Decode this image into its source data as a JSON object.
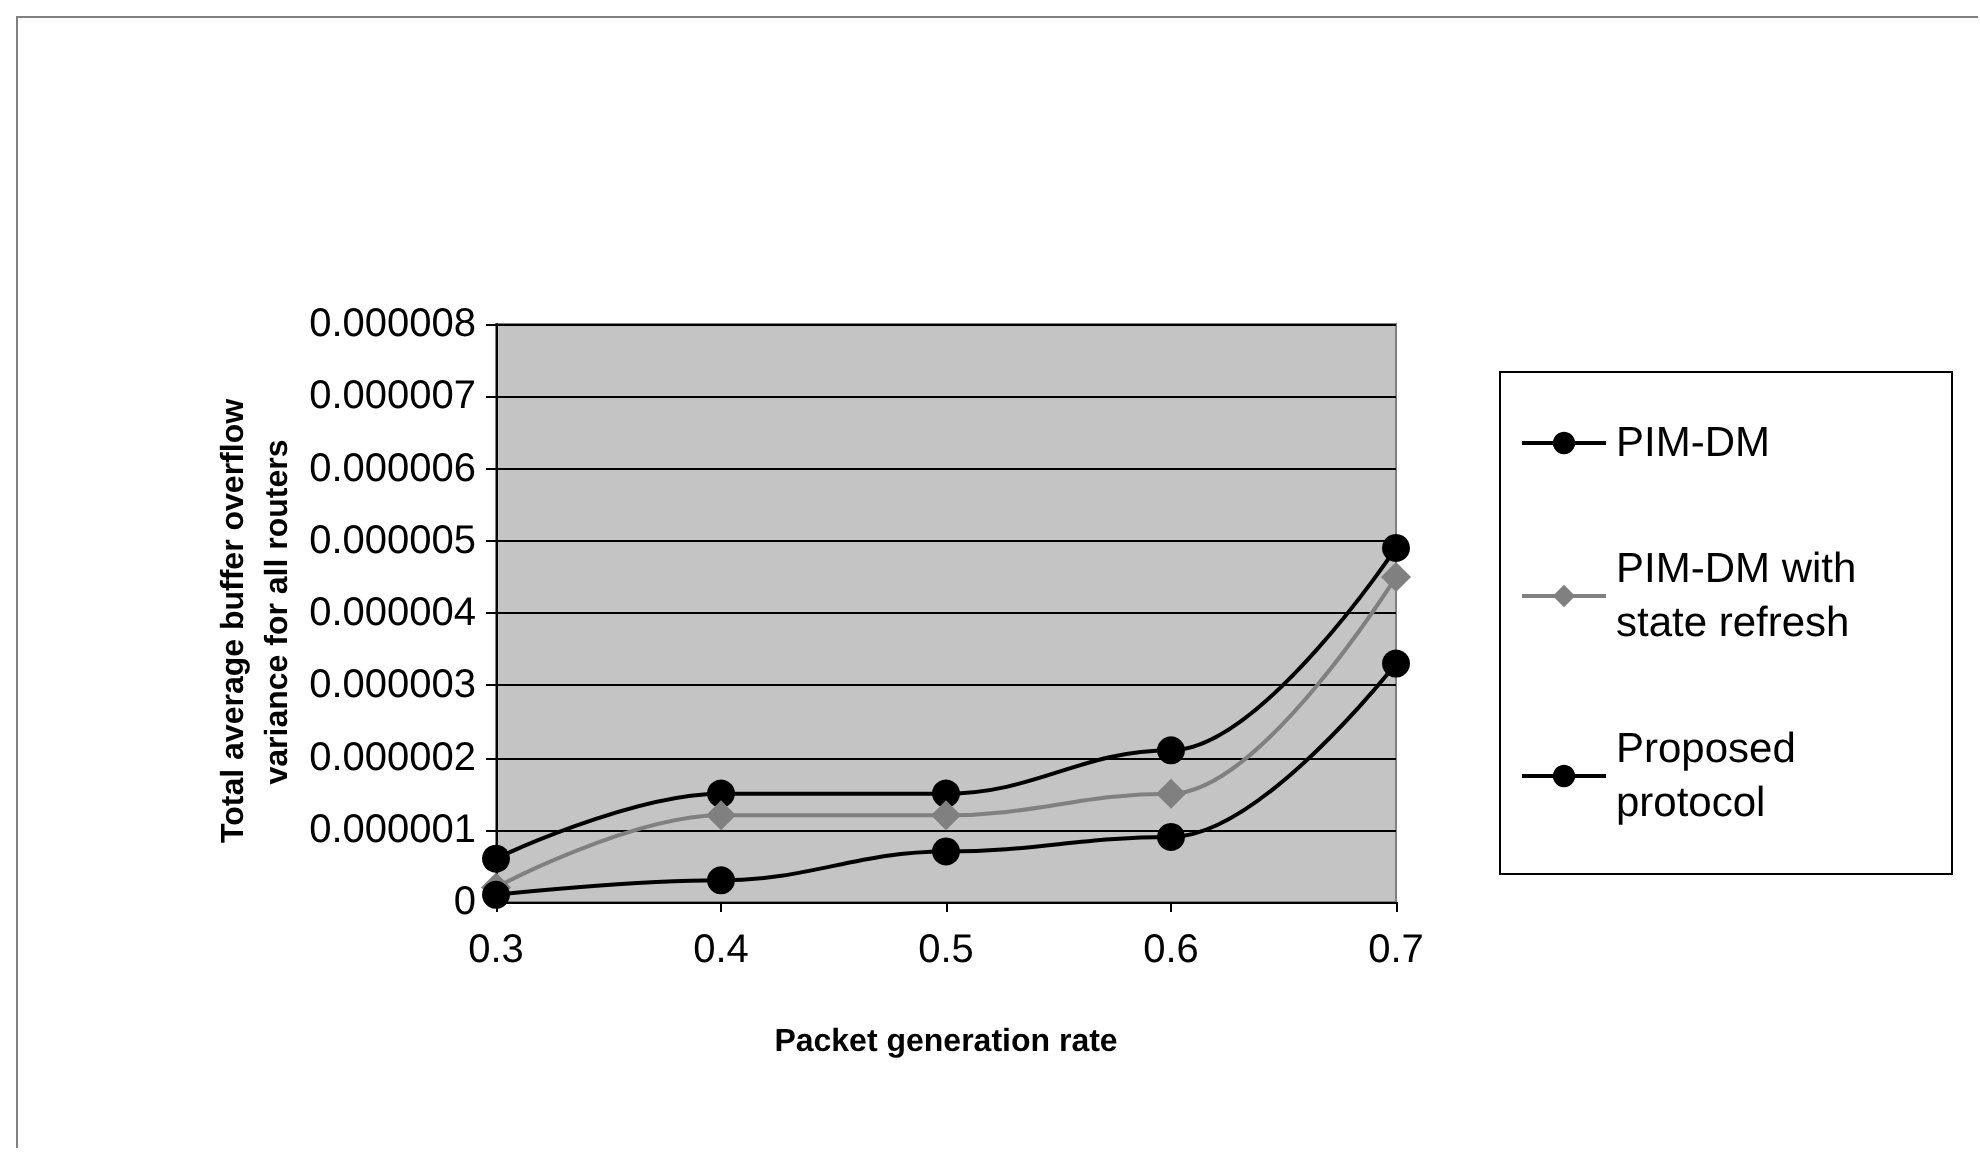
{
  "chart_data": {
    "type": "line",
    "xlabel": "Packet generation rate",
    "ylabel": "Total average buffer overflow  variance for all routers",
    "x": [
      0.3,
      0.4,
      0.5,
      0.6,
      0.7
    ],
    "series": [
      {
        "name": "PIM-DM",
        "color": "#000000",
        "marker": "circle",
        "values": [
          6e-07,
          1.5e-06,
          1.5e-06,
          2.1e-06,
          4.9e-06
        ]
      },
      {
        "name": "PIM-DM with state refresh",
        "color": "#808080",
        "marker": "diamond",
        "values": [
          2e-07,
          1.2e-06,
          1.2e-06,
          1.5e-06,
          4.5e-06
        ]
      },
      {
        "name": "Proposed protocol",
        "color": "#000000",
        "marker": "circle",
        "values": [
          1e-07,
          3e-07,
          7e-07,
          9e-07,
          3.3e-06
        ]
      }
    ],
    "xlim": [
      0.3,
      0.7
    ],
    "xticks": [
      0.3,
      0.4,
      0.5,
      0.6,
      0.7
    ],
    "ylim": [
      0,
      8e-06
    ],
    "yticks": [
      0,
      {
        "value": 1e-06,
        "label": "0.000001"
      },
      {
        "value": 2e-06,
        "label": "0.000002"
      },
      {
        "value": 3e-06,
        "label": "0.000003"
      },
      {
        "value": 4e-06,
        "label": "0.000004"
      },
      {
        "value": 5e-06,
        "label": "0.000005"
      },
      {
        "value": 6e-06,
        "label": "0.000006"
      },
      {
        "value": 7e-06,
        "label": "0.000007"
      },
      {
        "value": 8e-06,
        "label": "0.000008"
      }
    ],
    "grid": "y",
    "legend": "right"
  }
}
